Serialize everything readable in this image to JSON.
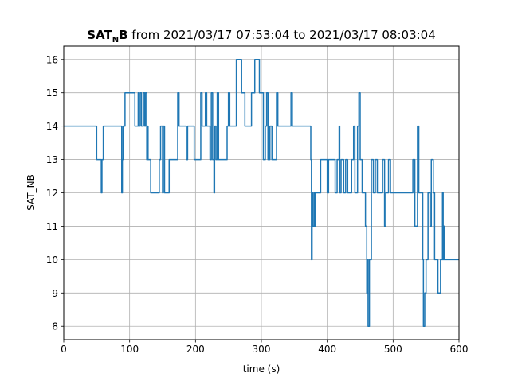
{
  "chart_data": {
    "type": "line",
    "drawstyle": "steps",
    "title": {
      "bold_main": "SAT",
      "bold_sub": "N",
      "bold_tail": "B",
      "rest": " from 2021/03/17 07:53:04 to 2021/03/17 08:03:04"
    },
    "xlabel": "time (s)",
    "ylabel": "SAT_NB",
    "xlim": [
      0,
      600
    ],
    "ylim": [
      7.6,
      16.4
    ],
    "xticks": [
      0,
      100,
      200,
      300,
      400,
      500,
      600
    ],
    "yticks": [
      8,
      9,
      10,
      11,
      12,
      13,
      14,
      15,
      16
    ],
    "grid": true,
    "series": [
      {
        "color": "#1f77b4",
        "points": [
          [
            0,
            14
          ],
          [
            50,
            14
          ],
          [
            50,
            13
          ],
          [
            57,
            13
          ],
          [
            57,
            12
          ],
          [
            58,
            12
          ],
          [
            58,
            13
          ],
          [
            60,
            13
          ],
          [
            60,
            14
          ],
          [
            88,
            14
          ],
          [
            88,
            12
          ],
          [
            89,
            12
          ],
          [
            89,
            13
          ],
          [
            90,
            13
          ],
          [
            90,
            14
          ],
          [
            93,
            14
          ],
          [
            93,
            15
          ],
          [
            108,
            15
          ],
          [
            108,
            14
          ],
          [
            113,
            14
          ],
          [
            113,
            15
          ],
          [
            114,
            15
          ],
          [
            114,
            14
          ],
          [
            116,
            14
          ],
          [
            116,
            15
          ],
          [
            118,
            15
          ],
          [
            118,
            14
          ],
          [
            121,
            14
          ],
          [
            121,
            15
          ],
          [
            123,
            15
          ],
          [
            123,
            14
          ],
          [
            124,
            14
          ],
          [
            124,
            15
          ],
          [
            126,
            15
          ],
          [
            126,
            13
          ],
          [
            127,
            13
          ],
          [
            127,
            14
          ],
          [
            128,
            14
          ],
          [
            128,
            13
          ],
          [
            132,
            13
          ],
          [
            132,
            12
          ],
          [
            145,
            12
          ],
          [
            145,
            13
          ],
          [
            147,
            13
          ],
          [
            147,
            14
          ],
          [
            150,
            14
          ],
          [
            150,
            12
          ],
          [
            151,
            12
          ],
          [
            151,
            14
          ],
          [
            153,
            14
          ],
          [
            153,
            12
          ],
          [
            160,
            12
          ],
          [
            160,
            13
          ],
          [
            173,
            13
          ],
          [
            173,
            15
          ],
          [
            175,
            15
          ],
          [
            175,
            14
          ],
          [
            186,
            14
          ],
          [
            186,
            13
          ],
          [
            188,
            13
          ],
          [
            188,
            14
          ],
          [
            198,
            14
          ],
          [
            198,
            13
          ],
          [
            208,
            13
          ],
          [
            208,
            15
          ],
          [
            210,
            15
          ],
          [
            210,
            14
          ],
          [
            215,
            14
          ],
          [
            215,
            15
          ],
          [
            217,
            15
          ],
          [
            217,
            14
          ],
          [
            222,
            14
          ],
          [
            222,
            13
          ],
          [
            224,
            13
          ],
          [
            224,
            15
          ],
          [
            226,
            15
          ],
          [
            226,
            13
          ],
          [
            228,
            13
          ],
          [
            228,
            12
          ],
          [
            229,
            12
          ],
          [
            229,
            14
          ],
          [
            231,
            14
          ],
          [
            231,
            13
          ],
          [
            233,
            13
          ],
          [
            233,
            15
          ],
          [
            235,
            15
          ],
          [
            235,
            13
          ],
          [
            248,
            13
          ],
          [
            248,
            14
          ],
          [
            250,
            14
          ],
          [
            250,
            15
          ],
          [
            252,
            15
          ],
          [
            252,
            14
          ],
          [
            262,
            14
          ],
          [
            262,
            16
          ],
          [
            270,
            16
          ],
          [
            270,
            15
          ],
          [
            275,
            15
          ],
          [
            275,
            14
          ],
          [
            285,
            14
          ],
          [
            285,
            15
          ],
          [
            290,
            15
          ],
          [
            290,
            16
          ],
          [
            297,
            16
          ],
          [
            297,
            15
          ],
          [
            303,
            15
          ],
          [
            303,
            13
          ],
          [
            306,
            13
          ],
          [
            306,
            14
          ],
          [
            308,
            14
          ],
          [
            308,
            15
          ],
          [
            310,
            15
          ],
          [
            310,
            13
          ],
          [
            313,
            13
          ],
          [
            313,
            14
          ],
          [
            316,
            14
          ],
          [
            316,
            13
          ],
          [
            323,
            13
          ],
          [
            323,
            15
          ],
          [
            325,
            15
          ],
          [
            325,
            14
          ],
          [
            345,
            14
          ],
          [
            345,
            15
          ],
          [
            347,
            15
          ],
          [
            347,
            14
          ],
          [
            375,
            14
          ],
          [
            375,
            13
          ],
          [
            376,
            13
          ],
          [
            376,
            10
          ],
          [
            377,
            10
          ],
          [
            377,
            12
          ],
          [
            378,
            12
          ],
          [
            378,
            11
          ],
          [
            380,
            11
          ],
          [
            380,
            12
          ],
          [
            381,
            12
          ],
          [
            381,
            11
          ],
          [
            382,
            11
          ],
          [
            382,
            12
          ],
          [
            390,
            12
          ],
          [
            390,
            13
          ],
          [
            400,
            13
          ],
          [
            400,
            12
          ],
          [
            402,
            12
          ],
          [
            402,
            13
          ],
          [
            412,
            13
          ],
          [
            412,
            12
          ],
          [
            415,
            12
          ],
          [
            415,
            13
          ],
          [
            418,
            13
          ],
          [
            418,
            14
          ],
          [
            419,
            14
          ],
          [
            419,
            12
          ],
          [
            421,
            12
          ],
          [
            421,
            13
          ],
          [
            425,
            13
          ],
          [
            425,
            12
          ],
          [
            428,
            12
          ],
          [
            428,
            13
          ],
          [
            431,
            13
          ],
          [
            431,
            12
          ],
          [
            437,
            12
          ],
          [
            437,
            13
          ],
          [
            440,
            13
          ],
          [
            440,
            14
          ],
          [
            442,
            14
          ],
          [
            442,
            12
          ],
          [
            446,
            12
          ],
          [
            446,
            14
          ],
          [
            448,
            14
          ],
          [
            448,
            15
          ],
          [
            450,
            15
          ],
          [
            450,
            13
          ],
          [
            453,
            13
          ],
          [
            453,
            12
          ],
          [
            458,
            12
          ],
          [
            458,
            11
          ],
          [
            460,
            11
          ],
          [
            460,
            9
          ],
          [
            461,
            9
          ],
          [
            461,
            10
          ],
          [
            462,
            10
          ],
          [
            462,
            8
          ],
          [
            464,
            8
          ],
          [
            464,
            10
          ],
          [
            467,
            10
          ],
          [
            467,
            13
          ],
          [
            470,
            13
          ],
          [
            470,
            12
          ],
          [
            473,
            12
          ],
          [
            473,
            13
          ],
          [
            476,
            13
          ],
          [
            476,
            12
          ],
          [
            484,
            12
          ],
          [
            484,
            13
          ],
          [
            487,
            13
          ],
          [
            487,
            11
          ],
          [
            489,
            11
          ],
          [
            489,
            12
          ],
          [
            493,
            12
          ],
          [
            493,
            13
          ],
          [
            496,
            13
          ],
          [
            496,
            12
          ],
          [
            530,
            12
          ],
          [
            530,
            13
          ],
          [
            533,
            13
          ],
          [
            533,
            11
          ],
          [
            537,
            11
          ],
          [
            537,
            14
          ],
          [
            539,
            14
          ],
          [
            539,
            12
          ],
          [
            545,
            12
          ],
          [
            545,
            10
          ],
          [
            546,
            10
          ],
          [
            546,
            8
          ],
          [
            548,
            8
          ],
          [
            548,
            9
          ],
          [
            550,
            9
          ],
          [
            550,
            10
          ],
          [
            553,
            10
          ],
          [
            553,
            12
          ],
          [
            556,
            12
          ],
          [
            556,
            11
          ],
          [
            558,
            11
          ],
          [
            558,
            13
          ],
          [
            561,
            13
          ],
          [
            561,
            12
          ],
          [
            563,
            12
          ],
          [
            563,
            10
          ],
          [
            568,
            10
          ],
          [
            568,
            9
          ],
          [
            572,
            9
          ],
          [
            572,
            10
          ],
          [
            575,
            10
          ],
          [
            575,
            12
          ],
          [
            576,
            12
          ],
          [
            576,
            10
          ],
          [
            577,
            10
          ],
          [
            577,
            11
          ],
          [
            578,
            11
          ],
          [
            578,
            10
          ],
          [
            600,
            10
          ]
        ]
      }
    ]
  }
}
